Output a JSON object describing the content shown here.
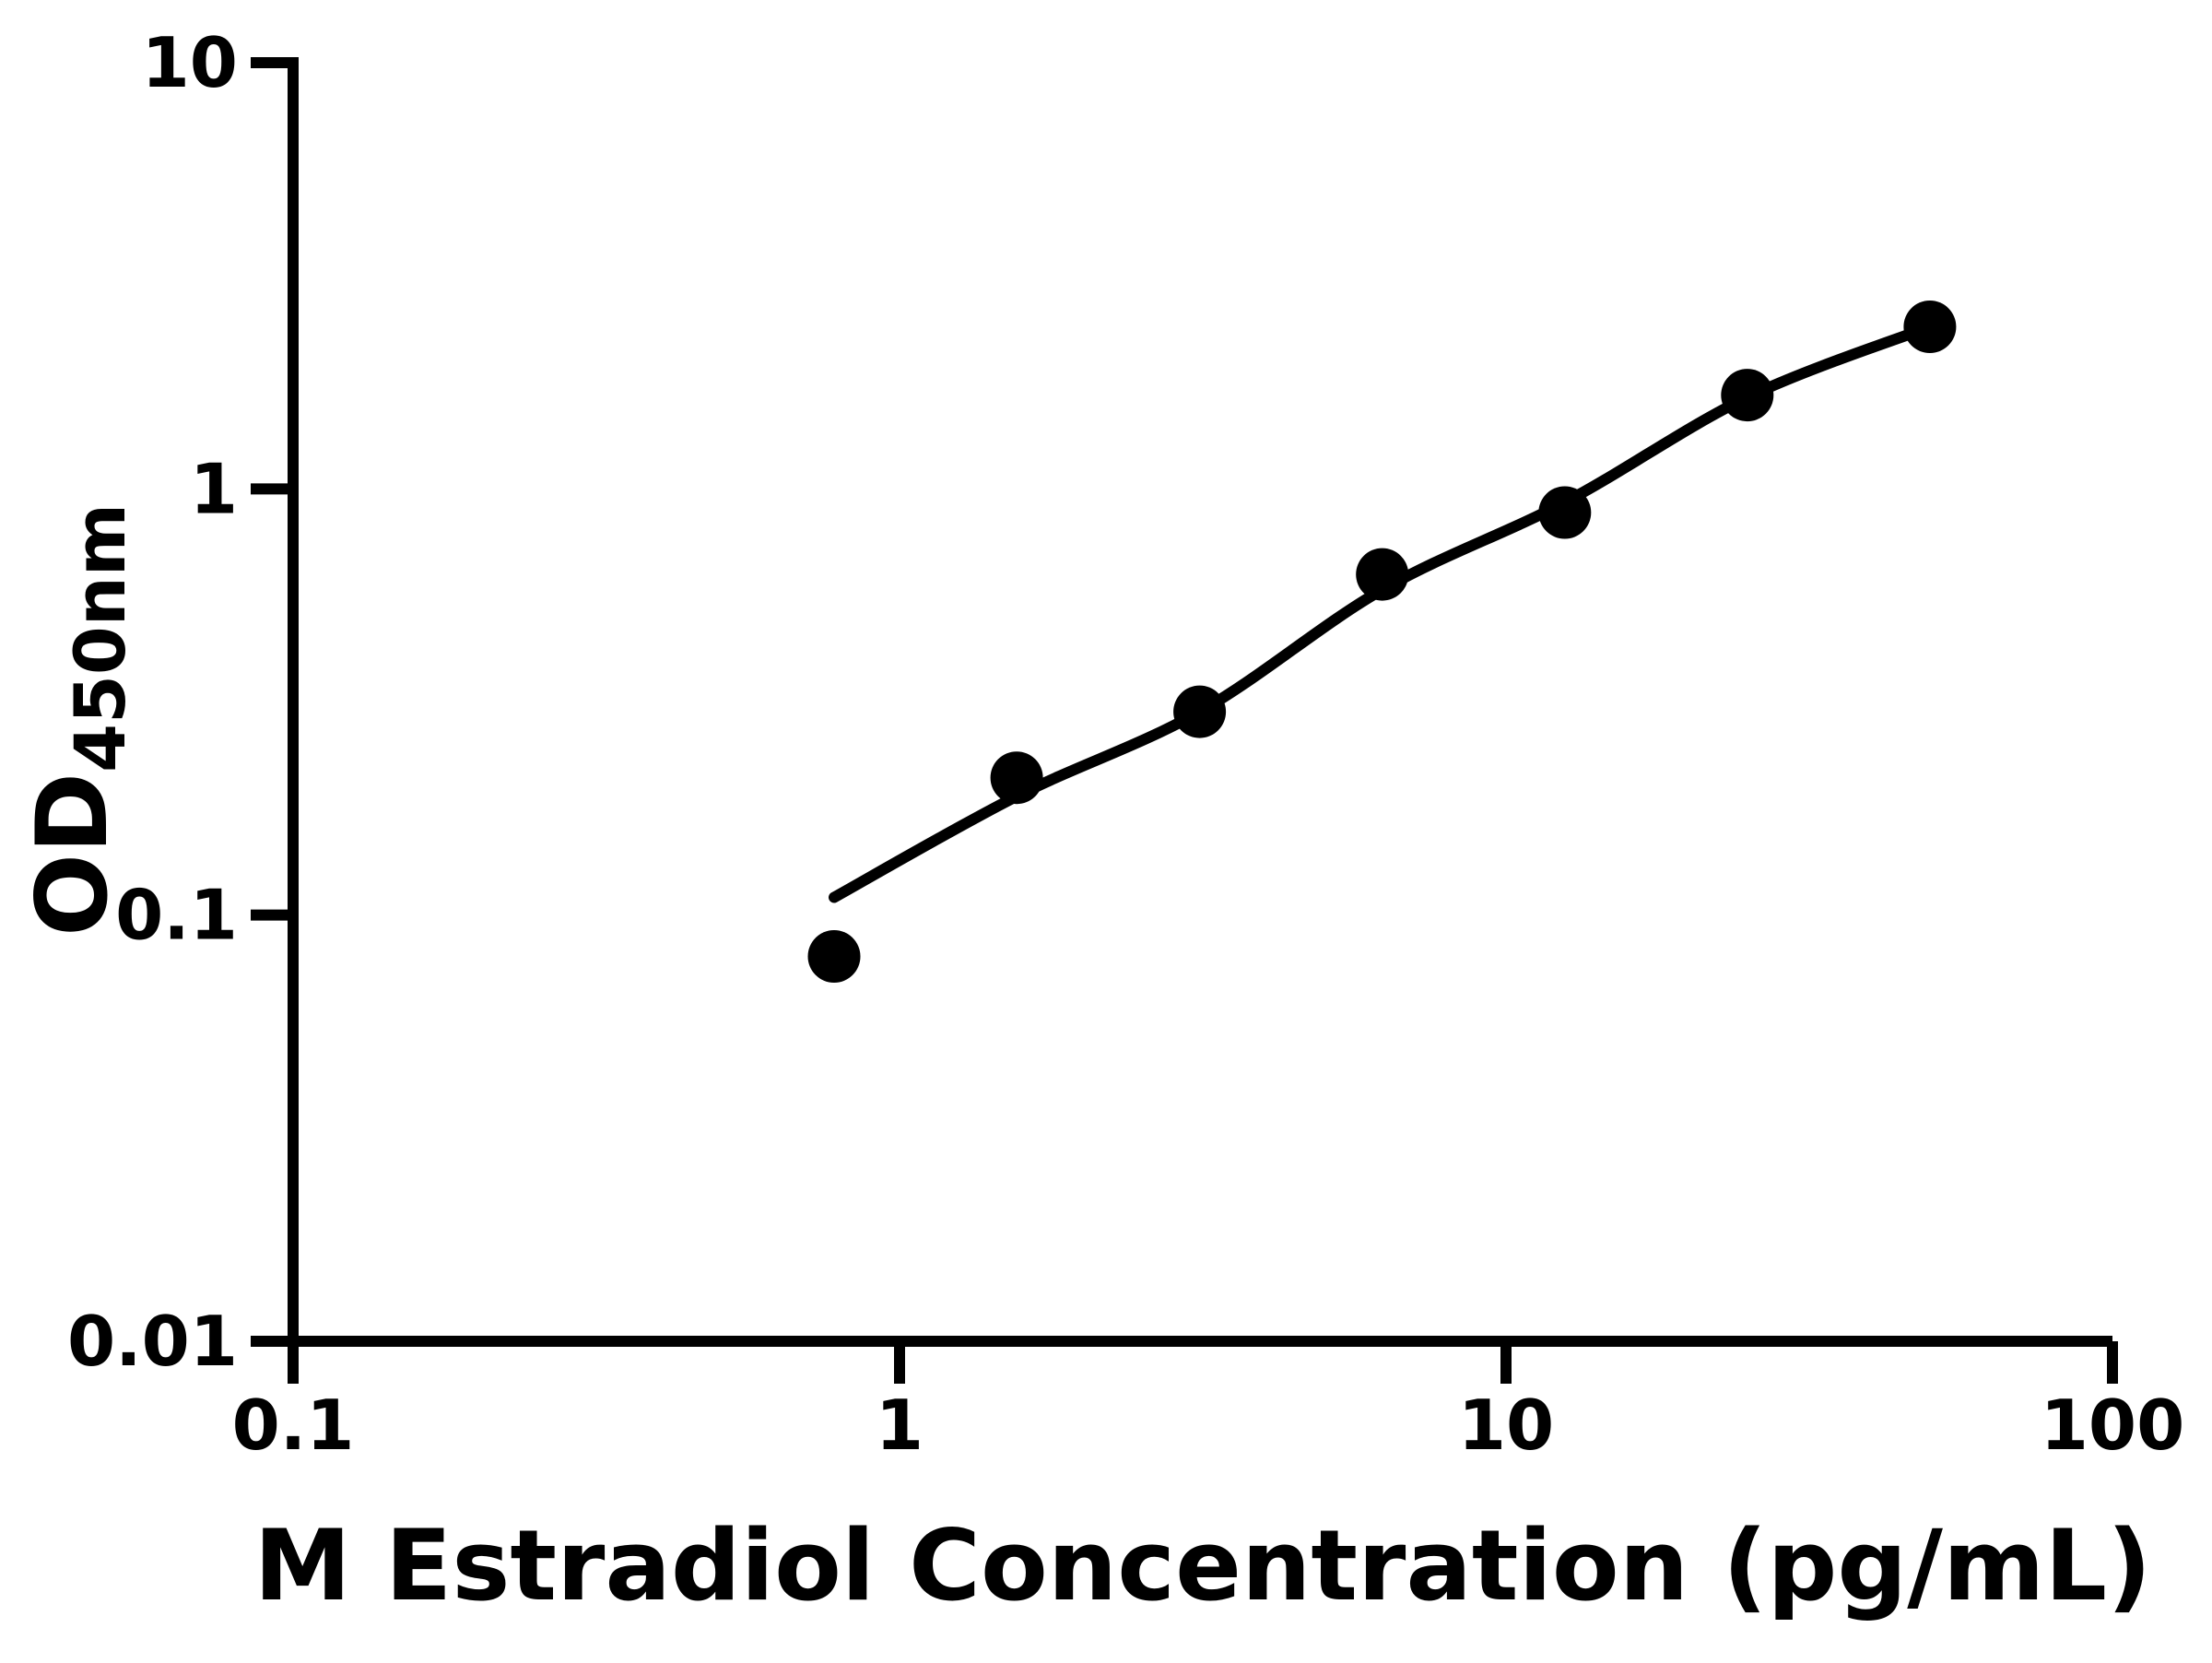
{
  "chart_data": {
    "type": "scatter",
    "title": "",
    "xlabel": "M Estradiol Concentration (pg/mL)",
    "ylabel_main": "OD",
    "ylabel_sub": "450nm",
    "x_scale": "log",
    "y_scale": "log",
    "xlim": [
      0.1,
      100
    ],
    "ylim": [
      0.01,
      10
    ],
    "x_ticks": [
      0.1,
      1,
      10,
      100
    ],
    "y_ticks": [
      10,
      1,
      0.1,
      0.01
    ],
    "grid": false,
    "legend": "none",
    "marker_color": "#000000",
    "curve_color": "#000000",
    "background_color": "#ffffff",
    "points": [
      {
        "concentration_pg_ml": 0.78,
        "od": 0.08
      },
      {
        "concentration_pg_ml": 1.56,
        "od": 0.21
      },
      {
        "concentration_pg_ml": 3.125,
        "od": 0.3
      },
      {
        "concentration_pg_ml": 6.25,
        "od": 0.63
      },
      {
        "concentration_pg_ml": 12.5,
        "od": 0.88
      },
      {
        "concentration_pg_ml": 25,
        "od": 1.66
      },
      {
        "concentration_pg_ml": 50,
        "od": 2.4
      }
    ],
    "fit_curve_samples": [
      {
        "x": 0.78,
        "y": 0.11
      },
      {
        "x": 1.56,
        "y": 0.19
      },
      {
        "x": 3.125,
        "y": 0.3
      },
      {
        "x": 6.25,
        "y": 0.58
      },
      {
        "x": 12.5,
        "y": 0.93
      },
      {
        "x": 25,
        "y": 1.64
      },
      {
        "x": 50,
        "y": 2.4
      }
    ]
  }
}
